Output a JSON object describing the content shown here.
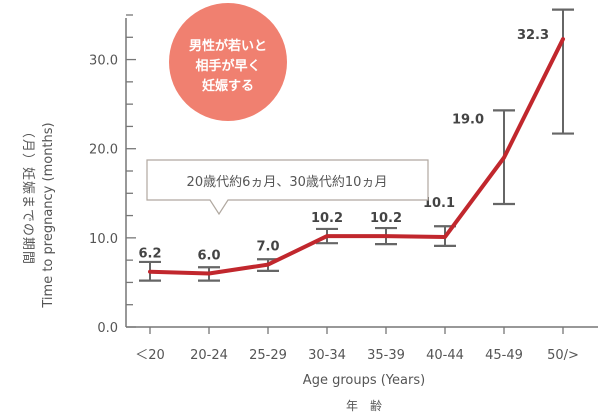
{
  "chart_data": {
    "type": "line",
    "categories": [
      "＜20",
      "20-24",
      "25-29",
      "30-34",
      "35-39",
      "40-44",
      "45-49",
      "50/>"
    ],
    "series": [
      {
        "values": [
          6.2,
          6.0,
          7.0,
          10.2,
          10.2,
          10.1,
          19.0,
          32.3
        ],
        "error_low": [
          5.2,
          5.2,
          6.3,
          9.4,
          9.3,
          9.1,
          13.8,
          21.7
        ],
        "error_high": [
          7.3,
          6.7,
          7.6,
          11.0,
          11.1,
          11.3,
          24.3,
          35.6
        ]
      }
    ],
    "data_labels": [
      "6.2",
      "6.0",
      "7.0",
      "10.2",
      "10.2",
      "10.1",
      "19.0",
      "32.3"
    ],
    "ylim": [
      0,
      35
    ],
    "yticks": [
      0,
      10,
      20,
      30
    ],
    "ytick_labels": [
      "0.0",
      "10.0",
      "20.0",
      "30.0"
    ],
    "xlabel": "Age groups (Years)",
    "xlabel_ja": "年　齢",
    "ylabel": "Time to pregnancy (months)",
    "ylabel_ja": "（月）妊娠までの期間",
    "grid": false,
    "colors": {
      "line": "#c1272d",
      "error_bar": "#666666",
      "axis": "#777777",
      "bubble": "#f08070",
      "callout_border": "#b0a8a0"
    }
  },
  "annotations": {
    "bubble_lines": [
      "男性が若いと",
      "相手が早く",
      "妊娠する"
    ],
    "callout": "20歳代約6ヵ月、30歳代約10ヵ月"
  }
}
